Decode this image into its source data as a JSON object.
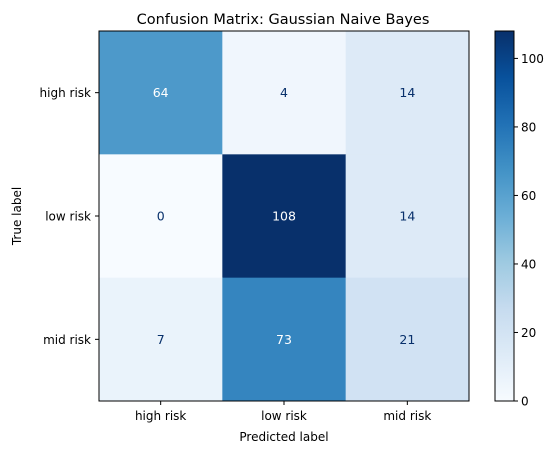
{
  "chart_data": {
    "type": "heatmap",
    "title": "Confusion Matrix: Gaussian Naive Bayes",
    "xlabel": "Predicted label",
    "ylabel": "True label",
    "x_categories": [
      "high risk",
      "low risk",
      "mid risk"
    ],
    "y_categories": [
      "high risk",
      "low risk",
      "mid risk"
    ],
    "values": [
      [
        64,
        4,
        14
      ],
      [
        0,
        108,
        14
      ],
      [
        7,
        73,
        21
      ]
    ],
    "colormap": "Blues",
    "colorbar": {
      "range": [
        0,
        108
      ],
      "ticks": [
        0,
        20,
        40,
        60,
        80,
        100
      ]
    },
    "grid": false
  }
}
